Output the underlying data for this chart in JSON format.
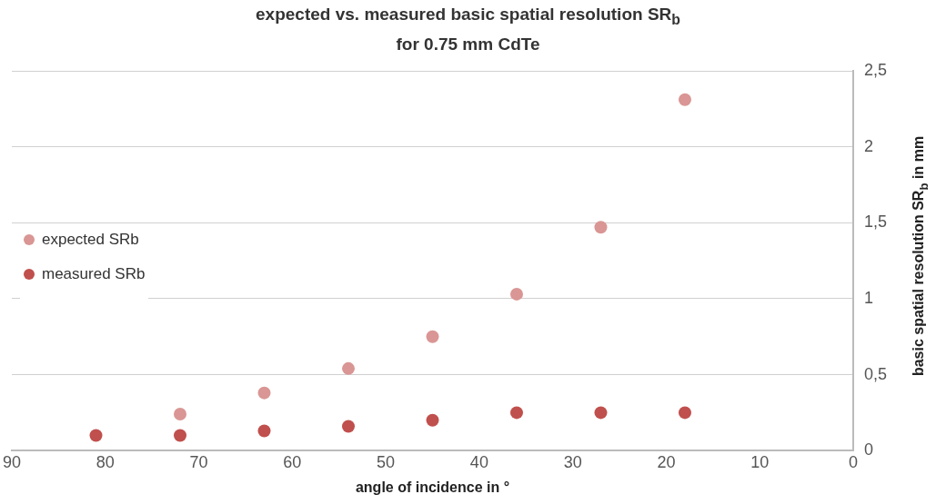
{
  "chart_data": {
    "type": "scatter",
    "title": "expected vs. measured basic spatial resolution SR$_{b}$\nfor 0.75 mm CdTe",
    "xlabel": "angle of incidence in °",
    "ylabel": "basic spatial resolution SR$_{b}$ in mm",
    "series": [
      {
        "name": "expected SRb",
        "color": "#d99694",
        "x": [
          72,
          63,
          54,
          45,
          36,
          27,
          18
        ],
        "values": [
          0.24,
          0.38,
          0.54,
          0.75,
          1.03,
          1.47,
          2.31
        ]
      },
      {
        "name": "measured SRb",
        "color": "#c0504d",
        "x": [
          81,
          72,
          63,
          54,
          45,
          36,
          27,
          18
        ],
        "values": [
          0.1,
          0.1,
          0.13,
          0.16,
          0.2,
          0.25,
          0.25,
          0.25
        ]
      }
    ],
    "xlim": [
      90,
      0
    ],
    "xticks": [
      90,
      80,
      70,
      60,
      50,
      40,
      30,
      20,
      10,
      0
    ],
    "ylim": [
      0,
      2.5
    ],
    "yticks": [
      0,
      {
        "value": 0.5,
        "label": "0,5"
      },
      1,
      {
        "value": 1.5,
        "label": "1,5"
      },
      2,
      {
        "value": 2.5,
        "label": "2,5"
      }
    ],
    "grid": "y",
    "legend": "left",
    "marker": "circle"
  }
}
